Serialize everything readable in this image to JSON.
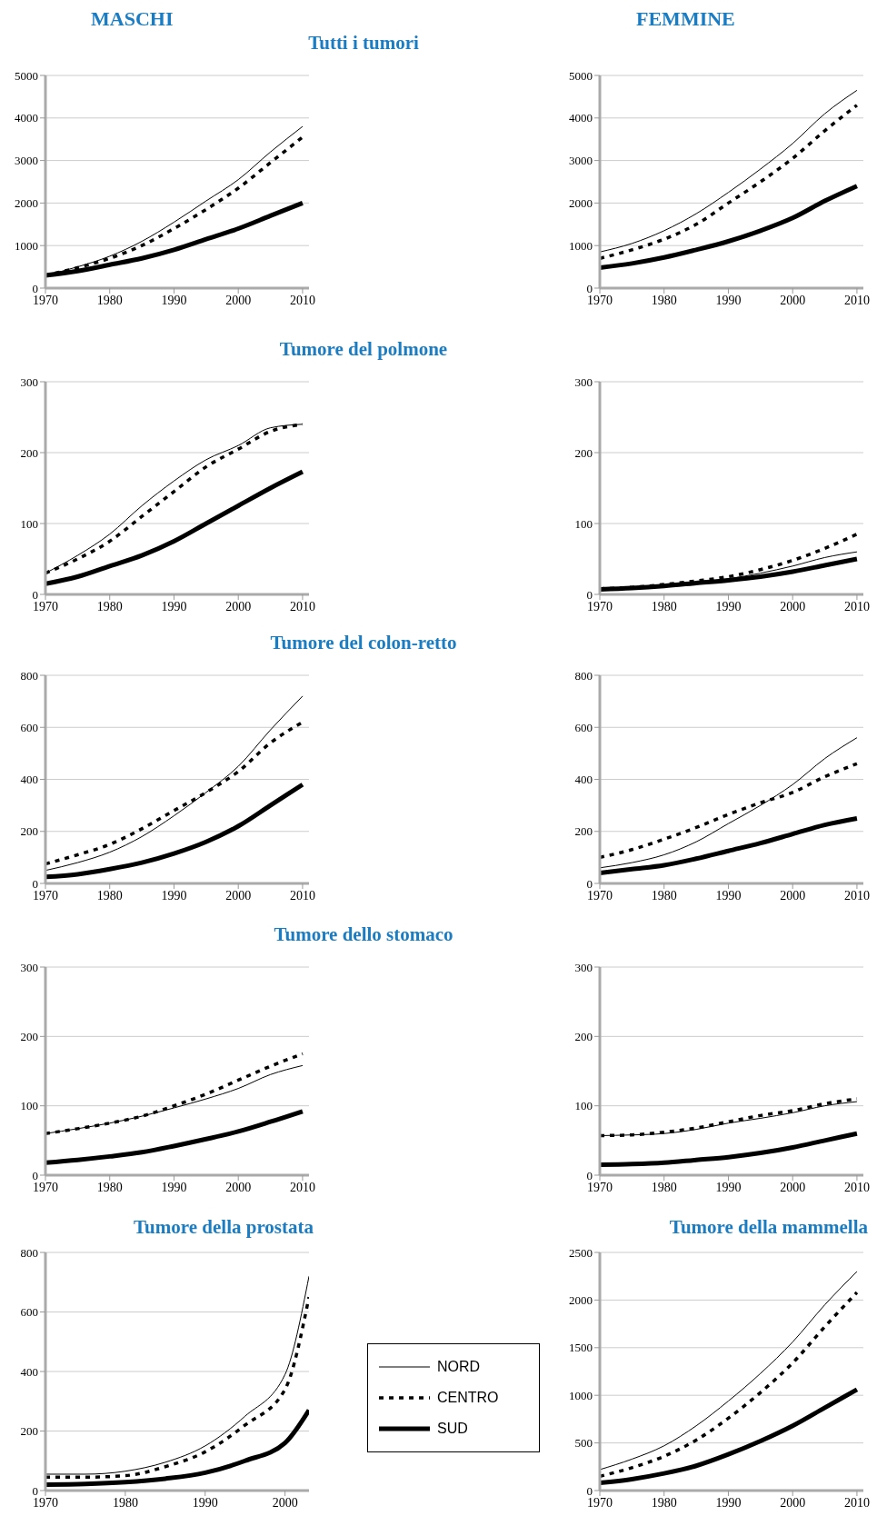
{
  "chart_data": [
    {
      "type": "line",
      "subtitle": "MASCHI",
      "title": "Tutti i tumori",
      "x": [
        1970,
        1975,
        1980,
        1985,
        1990,
        1995,
        2000,
        2005,
        2010
      ],
      "xlim": [
        1970,
        2011
      ],
      "xticks": [
        1970,
        1980,
        1990,
        2000,
        2010
      ],
      "ylim": [
        0,
        5000
      ],
      "yticks": [
        0,
        1000,
        2000,
        3000,
        4000,
        5000
      ],
      "grid": "y",
      "marker": "none",
      "series": [
        {
          "color": "#000000",
          "line_style": "solid",
          "values": [
            300,
            500,
            750,
            1100,
            1550,
            2050,
            2550,
            3200,
            3800
          ]
        },
        {
          "color": "#000000",
          "line_style": "dashed",
          "values": [
            300,
            480,
            700,
            1000,
            1400,
            1850,
            2350,
            2950,
            3550
          ]
        },
        {
          "color": "#000000",
          "line_style": "solid",
          "values": [
            300,
            400,
            550,
            700,
            900,
            1150,
            1400,
            1700,
            2000
          ]
        }
      ]
    },
    {
      "type": "line",
      "subtitle": "FEMMINE",
      "x": [
        1970,
        1975,
        1980,
        1985,
        1990,
        1995,
        2000,
        2005,
        2010
      ],
      "xlim": [
        1970,
        2011
      ],
      "xticks": [
        1970,
        1980,
        1990,
        2000,
        2010
      ],
      "ylim": [
        0,
        5000
      ],
      "yticks": [
        0,
        1000,
        2000,
        3000,
        4000,
        5000
      ],
      "grid": "y",
      "marker": "none",
      "series": [
        {
          "color": "#000000",
          "line_style": "solid",
          "values": [
            850,
            1050,
            1350,
            1750,
            2250,
            2800,
            3400,
            4100,
            4650
          ]
        },
        {
          "color": "#000000",
          "line_style": "dashed",
          "values": [
            700,
            900,
            1150,
            1500,
            2000,
            2500,
            3050,
            3700,
            4300
          ]
        },
        {
          "color": "#000000",
          "line_style": "solid",
          "values": [
            480,
            580,
            720,
            900,
            1100,
            1350,
            1650,
            2050,
            2400
          ]
        }
      ]
    },
    {
      "type": "line",
      "title": "Tumore del polmone",
      "x": [
        1970,
        1975,
        1980,
        1985,
        1990,
        1995,
        2000,
        2005,
        2010
      ],
      "xlim": [
        1970,
        2011
      ],
      "xticks": [
        1970,
        1980,
        1990,
        2000,
        2010
      ],
      "ylim": [
        0,
        300
      ],
      "yticks": [
        0,
        100,
        200,
        300
      ],
      "grid": "y",
      "marker": "none",
      "series": [
        {
          "color": "#000000",
          "line_style": "solid",
          "values": [
            30,
            55,
            85,
            125,
            160,
            190,
            210,
            235,
            240
          ]
        },
        {
          "color": "#000000",
          "line_style": "dashed",
          "values": [
            30,
            50,
            75,
            110,
            145,
            180,
            205,
            230,
            240
          ]
        },
        {
          "color": "#000000",
          "line_style": "solid",
          "values": [
            15,
            25,
            40,
            55,
            75,
            100,
            125,
            150,
            173
          ]
        }
      ]
    },
    {
      "type": "line",
      "x": [
        1970,
        1975,
        1980,
        1985,
        1990,
        1995,
        2000,
        2005,
        2010
      ],
      "xlim": [
        1970,
        2011
      ],
      "xticks": [
        1970,
        1980,
        1990,
        2000,
        2010
      ],
      "ylim": [
        0,
        300
      ],
      "yticks": [
        0,
        100,
        200,
        300
      ],
      "grid": "y",
      "marker": "none",
      "series": [
        {
          "color": "#000000",
          "line_style": "solid",
          "values": [
            8,
            10,
            13,
            17,
            22,
            30,
            40,
            52,
            60
          ]
        },
        {
          "color": "#000000",
          "line_style": "dashed",
          "values": [
            8,
            10,
            14,
            19,
            25,
            35,
            48,
            65,
            85
          ]
        },
        {
          "color": "#000000",
          "line_style": "solid",
          "values": [
            7,
            9,
            12,
            16,
            20,
            25,
            32,
            41,
            50
          ]
        }
      ]
    },
    {
      "type": "line",
      "title": "Tumore del colon-retto",
      "x": [
        1970,
        1975,
        1980,
        1985,
        1990,
        1995,
        2000,
        2005,
        2010
      ],
      "xlim": [
        1970,
        2011
      ],
      "xticks": [
        1970,
        1980,
        1990,
        2000,
        2010
      ],
      "ylim": [
        0,
        800
      ],
      "yticks": [
        0,
        200,
        400,
        600,
        800
      ],
      "grid": "y",
      "marker": "none",
      "series": [
        {
          "color": "#000000",
          "line_style": "solid",
          "values": [
            50,
            80,
            120,
            180,
            260,
            350,
            450,
            590,
            720
          ]
        },
        {
          "color": "#000000",
          "line_style": "dashed",
          "values": [
            75,
            110,
            150,
            210,
            280,
            350,
            430,
            540,
            620
          ]
        },
        {
          "color": "#000000",
          "line_style": "solid",
          "values": [
            25,
            35,
            55,
            80,
            115,
            160,
            220,
            300,
            380
          ]
        }
      ]
    },
    {
      "type": "line",
      "x": [
        1970,
        1975,
        1980,
        1985,
        1990,
        1995,
        2000,
        2005,
        2010
      ],
      "xlim": [
        1970,
        2011
      ],
      "xticks": [
        1970,
        1980,
        1990,
        2000,
        2010
      ],
      "ylim": [
        0,
        800
      ],
      "yticks": [
        0,
        200,
        400,
        600,
        800
      ],
      "grid": "y",
      "marker": "none",
      "series": [
        {
          "color": "#000000",
          "line_style": "solid",
          "values": [
            60,
            80,
            110,
            160,
            230,
            300,
            380,
            480,
            560
          ]
        },
        {
          "color": "#000000",
          "line_style": "dashed",
          "values": [
            100,
            130,
            170,
            215,
            265,
            310,
            350,
            410,
            460
          ]
        },
        {
          "color": "#000000",
          "line_style": "solid",
          "values": [
            40,
            55,
            70,
            95,
            125,
            155,
            190,
            225,
            250
          ]
        }
      ]
    },
    {
      "type": "line",
      "title": "Tumore dello stomaco",
      "x": [
        1970,
        1975,
        1980,
        1985,
        1990,
        1995,
        2000,
        2005,
        2010
      ],
      "xlim": [
        1970,
        2011
      ],
      "xticks": [
        1970,
        1980,
        1990,
        2000,
        2010
      ],
      "ylim": [
        0,
        300
      ],
      "yticks": [
        0,
        100,
        200,
        300
      ],
      "grid": "y",
      "marker": "none",
      "series": [
        {
          "color": "#000000",
          "line_style": "solid",
          "values": [
            60,
            67,
            75,
            85,
            97,
            110,
            125,
            145,
            158
          ]
        },
        {
          "color": "#000000",
          "line_style": "dashed",
          "values": [
            60,
            67,
            75,
            85,
            100,
            117,
            137,
            157,
            175
          ]
        },
        {
          "color": "#000000",
          "line_style": "solid",
          "values": [
            18,
            22,
            27,
            33,
            42,
            52,
            63,
            77,
            92
          ]
        }
      ]
    },
    {
      "type": "line",
      "x": [
        1970,
        1975,
        1980,
        1985,
        1990,
        1995,
        2000,
        2005,
        2010
      ],
      "xlim": [
        1970,
        2011
      ],
      "xticks": [
        1970,
        1980,
        1990,
        2000,
        2010
      ],
      "ylim": [
        0,
        300
      ],
      "yticks": [
        0,
        100,
        200,
        300
      ],
      "grid": "y",
      "marker": "none",
      "series": [
        {
          "color": "#000000",
          "line_style": "solid",
          "values": [
            57,
            58,
            60,
            66,
            75,
            82,
            90,
            100,
            106
          ]
        },
        {
          "color": "#000000",
          "line_style": "dashed",
          "values": [
            57,
            58,
            62,
            68,
            77,
            86,
            93,
            103,
            110
          ]
        },
        {
          "color": "#000000",
          "line_style": "solid",
          "values": [
            15,
            16,
            18,
            22,
            26,
            32,
            40,
            50,
            60
          ]
        }
      ]
    },
    {
      "type": "line",
      "title": "Tumore della prostata",
      "x": [
        1970,
        1975,
        1980,
        1985,
        1990,
        1995,
        2000,
        2003
      ],
      "xlim": [
        1970,
        2003
      ],
      "xticks": [
        1970,
        1980,
        1990,
        2000
      ],
      "ylim": [
        0,
        800
      ],
      "yticks": [
        0,
        200,
        400,
        600,
        800
      ],
      "grid": "y",
      "marker": "none",
      "legend": "right",
      "series": [
        {
          "name": "NORD",
          "color": "#000000",
          "line_style": "solid",
          "values": [
            55,
            55,
            65,
            95,
            150,
            250,
            390,
            720
          ]
        },
        {
          "name": "CENTRO",
          "color": "#000000",
          "line_style": "dashed",
          "values": [
            45,
            45,
            50,
            80,
            130,
            220,
            340,
            650
          ]
        },
        {
          "name": "SUD",
          "color": "#000000",
          "line_style": "solid",
          "values": [
            20,
            22,
            28,
            40,
            60,
            100,
            160,
            270
          ]
        }
      ]
    },
    {
      "type": "line",
      "title": "Tumore della mammella",
      "x": [
        1970,
        1975,
        1980,
        1985,
        1990,
        1995,
        2000,
        2005,
        2010
      ],
      "xlim": [
        1970,
        2011
      ],
      "xticks": [
        1970,
        1980,
        1990,
        2000,
        2010
      ],
      "ylim": [
        0,
        2500
      ],
      "yticks": [
        0,
        500,
        1000,
        1500,
        2000,
        2500
      ],
      "grid": "y",
      "marker": "none",
      "series": [
        {
          "color": "#000000",
          "line_style": "solid",
          "values": [
            220,
            330,
            470,
            680,
            940,
            1230,
            1560,
            1950,
            2300
          ]
        },
        {
          "color": "#000000",
          "line_style": "dashed",
          "values": [
            150,
            240,
            360,
            530,
            760,
            1030,
            1340,
            1720,
            2080
          ]
        },
        {
          "color": "#000000",
          "line_style": "solid",
          "values": [
            80,
            120,
            180,
            260,
            380,
            520,
            680,
            870,
            1060
          ]
        }
      ]
    }
  ]
}
